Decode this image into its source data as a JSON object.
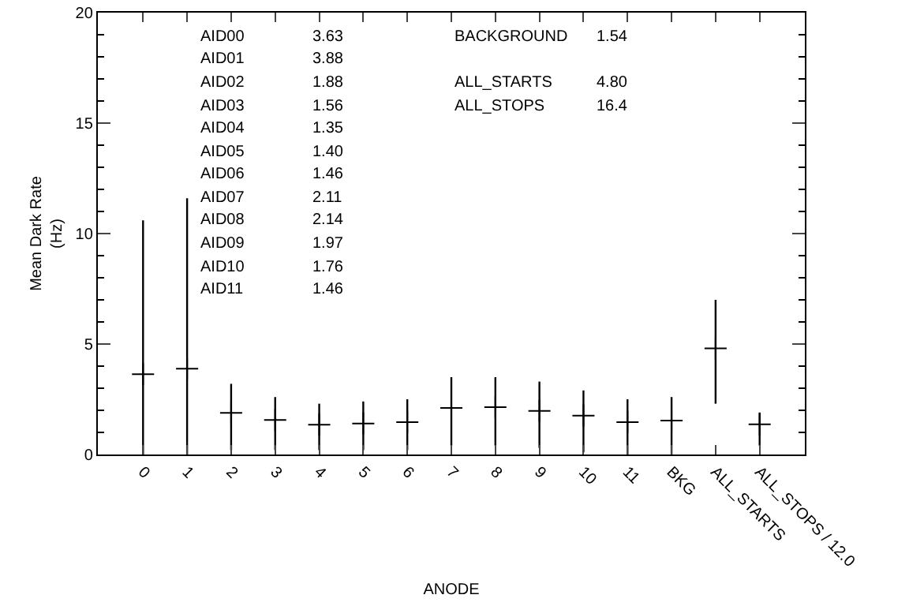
{
  "chart_data": {
    "type": "scatter",
    "xlabel": "ANODE",
    "ylabel": "Mean Dark Rate\n(Hz)",
    "categories": [
      "0",
      "1",
      "2",
      "3",
      "4",
      "5",
      "6",
      "7",
      "8",
      "9",
      "10",
      "11",
      "BKG",
      "ALL_STARTS",
      "ALL_STOPS / 12.0"
    ],
    "values": [
      3.63,
      3.88,
      1.88,
      1.56,
      1.35,
      1.4,
      1.46,
      2.11,
      2.14,
      1.97,
      1.76,
      1.46,
      1.54,
      4.8,
      1.37
    ],
    "errors": [
      [
        0,
        10.6
      ],
      [
        0,
        11.6
      ],
      [
        0.2,
        3.2
      ],
      [
        0.2,
        2.6
      ],
      [
        0.2,
        2.3
      ],
      [
        0.2,
        2.4
      ],
      [
        0.2,
        2.5
      ],
      [
        0.4,
        3.5
      ],
      [
        0.4,
        3.5
      ],
      [
        0.3,
        3.3
      ],
      [
        0.1,
        2.9
      ],
      [
        0,
        2.5
      ],
      [
        0,
        2.6
      ],
      [
        2.3,
        7.0
      ],
      [
        0.4,
        1.9
      ]
    ],
    "color": "#000000",
    "marker": "cross",
    "ylim": [
      0,
      20
    ],
    "yticks": [
      0,
      5,
      10,
      15,
      20
    ],
    "grid": false,
    "annotations": [
      "AID00 3.63",
      "AID01 3.88",
      "AID02 1.88",
      "AID03 1.56",
      "AID04 1.35",
      "AID05 1.40",
      "AID06 1.46",
      "AID07 2.11",
      "AID08 2.14",
      "AID09 1.97",
      "AID10 1.76",
      "AID11 1.46",
      "BACKGROUND 1.54",
      "ALL_STARTS 4.80",
      "ALL_STOPS 16.4"
    ]
  }
}
